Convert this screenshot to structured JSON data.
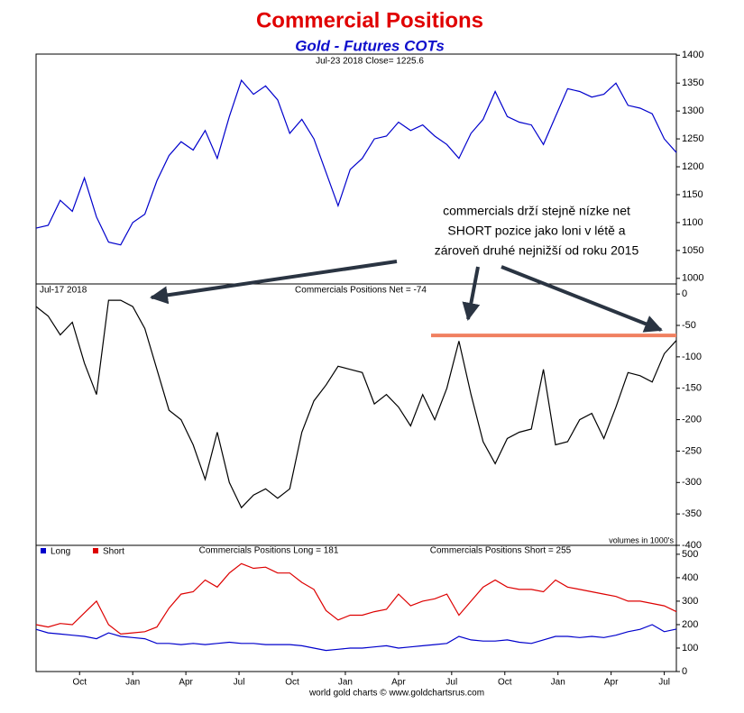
{
  "chart_data": [
    {
      "type": "line",
      "title": "Commercial Positions",
      "subtitle": "Gold - Futures COTs",
      "label": "Jul-23  2018   Close= 1225.6",
      "color": "#0000cc",
      "xlim": [
        0,
        53
      ],
      "ylim": [
        990,
        1402
      ],
      "yticks": [
        1000,
        1050,
        1100,
        1150,
        1200,
        1250,
        1300,
        1350,
        1400
      ],
      "values": [
        1090,
        1095,
        1140,
        1120,
        1180,
        1110,
        1065,
        1060,
        1100,
        1115,
        1175,
        1220,
        1245,
        1230,
        1265,
        1215,
        1290,
        1355,
        1330,
        1345,
        1320,
        1260,
        1285,
        1250,
        1190,
        1130,
        1195,
        1215,
        1250,
        1255,
        1280,
        1265,
        1275,
        1255,
        1240,
        1215,
        1260,
        1285,
        1335,
        1290,
        1280,
        1275,
        1240,
        1290,
        1340,
        1335,
        1325,
        1330,
        1350,
        1310,
        1305,
        1295,
        1250,
        1225.6
      ]
    },
    {
      "type": "line",
      "label": "Jul-17  2018",
      "title": "Commercials Positions Net = -74",
      "note": "volumes in 1000's",
      "annotation": [
        "commercials drží stejně nízke net",
        "SHORT pozice jako loni v létě a",
        "zároveň druhé nejnižší od roku 2015"
      ],
      "hline": -66,
      "hline_color": "#f08060",
      "color": "#000000",
      "xlim": [
        0,
        53
      ],
      "ylim": [
        -400,
        16
      ],
      "yticks": [
        0,
        -50,
        -100,
        -150,
        -200,
        -250,
        -300,
        -350,
        -400
      ],
      "values": [
        -20,
        -35,
        -65,
        -45,
        -110,
        -160,
        -10,
        -10,
        -20,
        -55,
        -120,
        -185,
        -200,
        -240,
        -295,
        -220,
        -300,
        -340,
        -320,
        -310,
        -325,
        -310,
        -220,
        -170,
        -145,
        -115,
        -120,
        -125,
        -175,
        -160,
        -180,
        -210,
        -160,
        -200,
        -150,
        -75,
        -160,
        -235,
        -270,
        -230,
        -220,
        -215,
        -120,
        -240,
        -235,
        -200,
        -190,
        -230,
        -180,
        -125,
        -130,
        -140,
        -95,
        -74
      ]
    },
    {
      "type": "line",
      "titles": [
        "Commercials Positions Long = 181",
        "Commercials Positions Short = 255"
      ],
      "footer": "world gold charts © www.goldchartsrus.com",
      "xlim": [
        0,
        53
      ],
      "ylim": [
        0,
        538
      ],
      "yticks": [
        0,
        100,
        200,
        300,
        400,
        500
      ],
      "xticks": [
        {
          "value": 3.6,
          "label": "Oct"
        },
        {
          "value": 8,
          "label": "Jan"
        },
        {
          "value": 12.4,
          "label": "Apr"
        },
        {
          "value": 16.8,
          "label": "Jul"
        },
        {
          "value": 21.2,
          "label": "Oct"
        },
        {
          "value": 25.6,
          "label": "Jan"
        },
        {
          "value": 30,
          "label": "Apr"
        },
        {
          "value": 34.4,
          "label": "Jul"
        },
        {
          "value": 38.8,
          "label": "Oct"
        },
        {
          "value": 43.2,
          "label": "Jan"
        },
        {
          "value": 47.6,
          "label": "Apr"
        },
        {
          "value": 52,
          "label": "Jul"
        }
      ],
      "series": [
        {
          "name": "Long",
          "color": "#0000cc",
          "values": [
            180,
            165,
            160,
            155,
            150,
            140,
            165,
            150,
            145,
            140,
            120,
            120,
            115,
            120,
            115,
            120,
            125,
            120,
            120,
            115,
            115,
            115,
            110,
            100,
            90,
            95,
            100,
            100,
            105,
            110,
            100,
            105,
            110,
            115,
            120,
            150,
            135,
            130,
            130,
            135,
            125,
            120,
            135,
            150,
            150,
            145,
            150,
            145,
            155,
            170,
            180,
            200,
            170,
            181
          ]
        },
        {
          "name": "Short",
          "color": "#dd0000",
          "values": [
            200,
            190,
            205,
            200,
            250,
            300,
            200,
            160,
            165,
            170,
            190,
            270,
            330,
            340,
            390,
            360,
            420,
            460,
            440,
            445,
            420,
            420,
            380,
            350,
            260,
            220,
            240,
            240,
            255,
            265,
            330,
            280,
            300,
            310,
            330,
            240,
            300,
            360,
            390,
            360,
            350,
            350,
            340,
            390,
            360,
            350,
            340,
            330,
            320,
            300,
            300,
            290,
            280,
            255
          ]
        }
      ]
    }
  ]
}
